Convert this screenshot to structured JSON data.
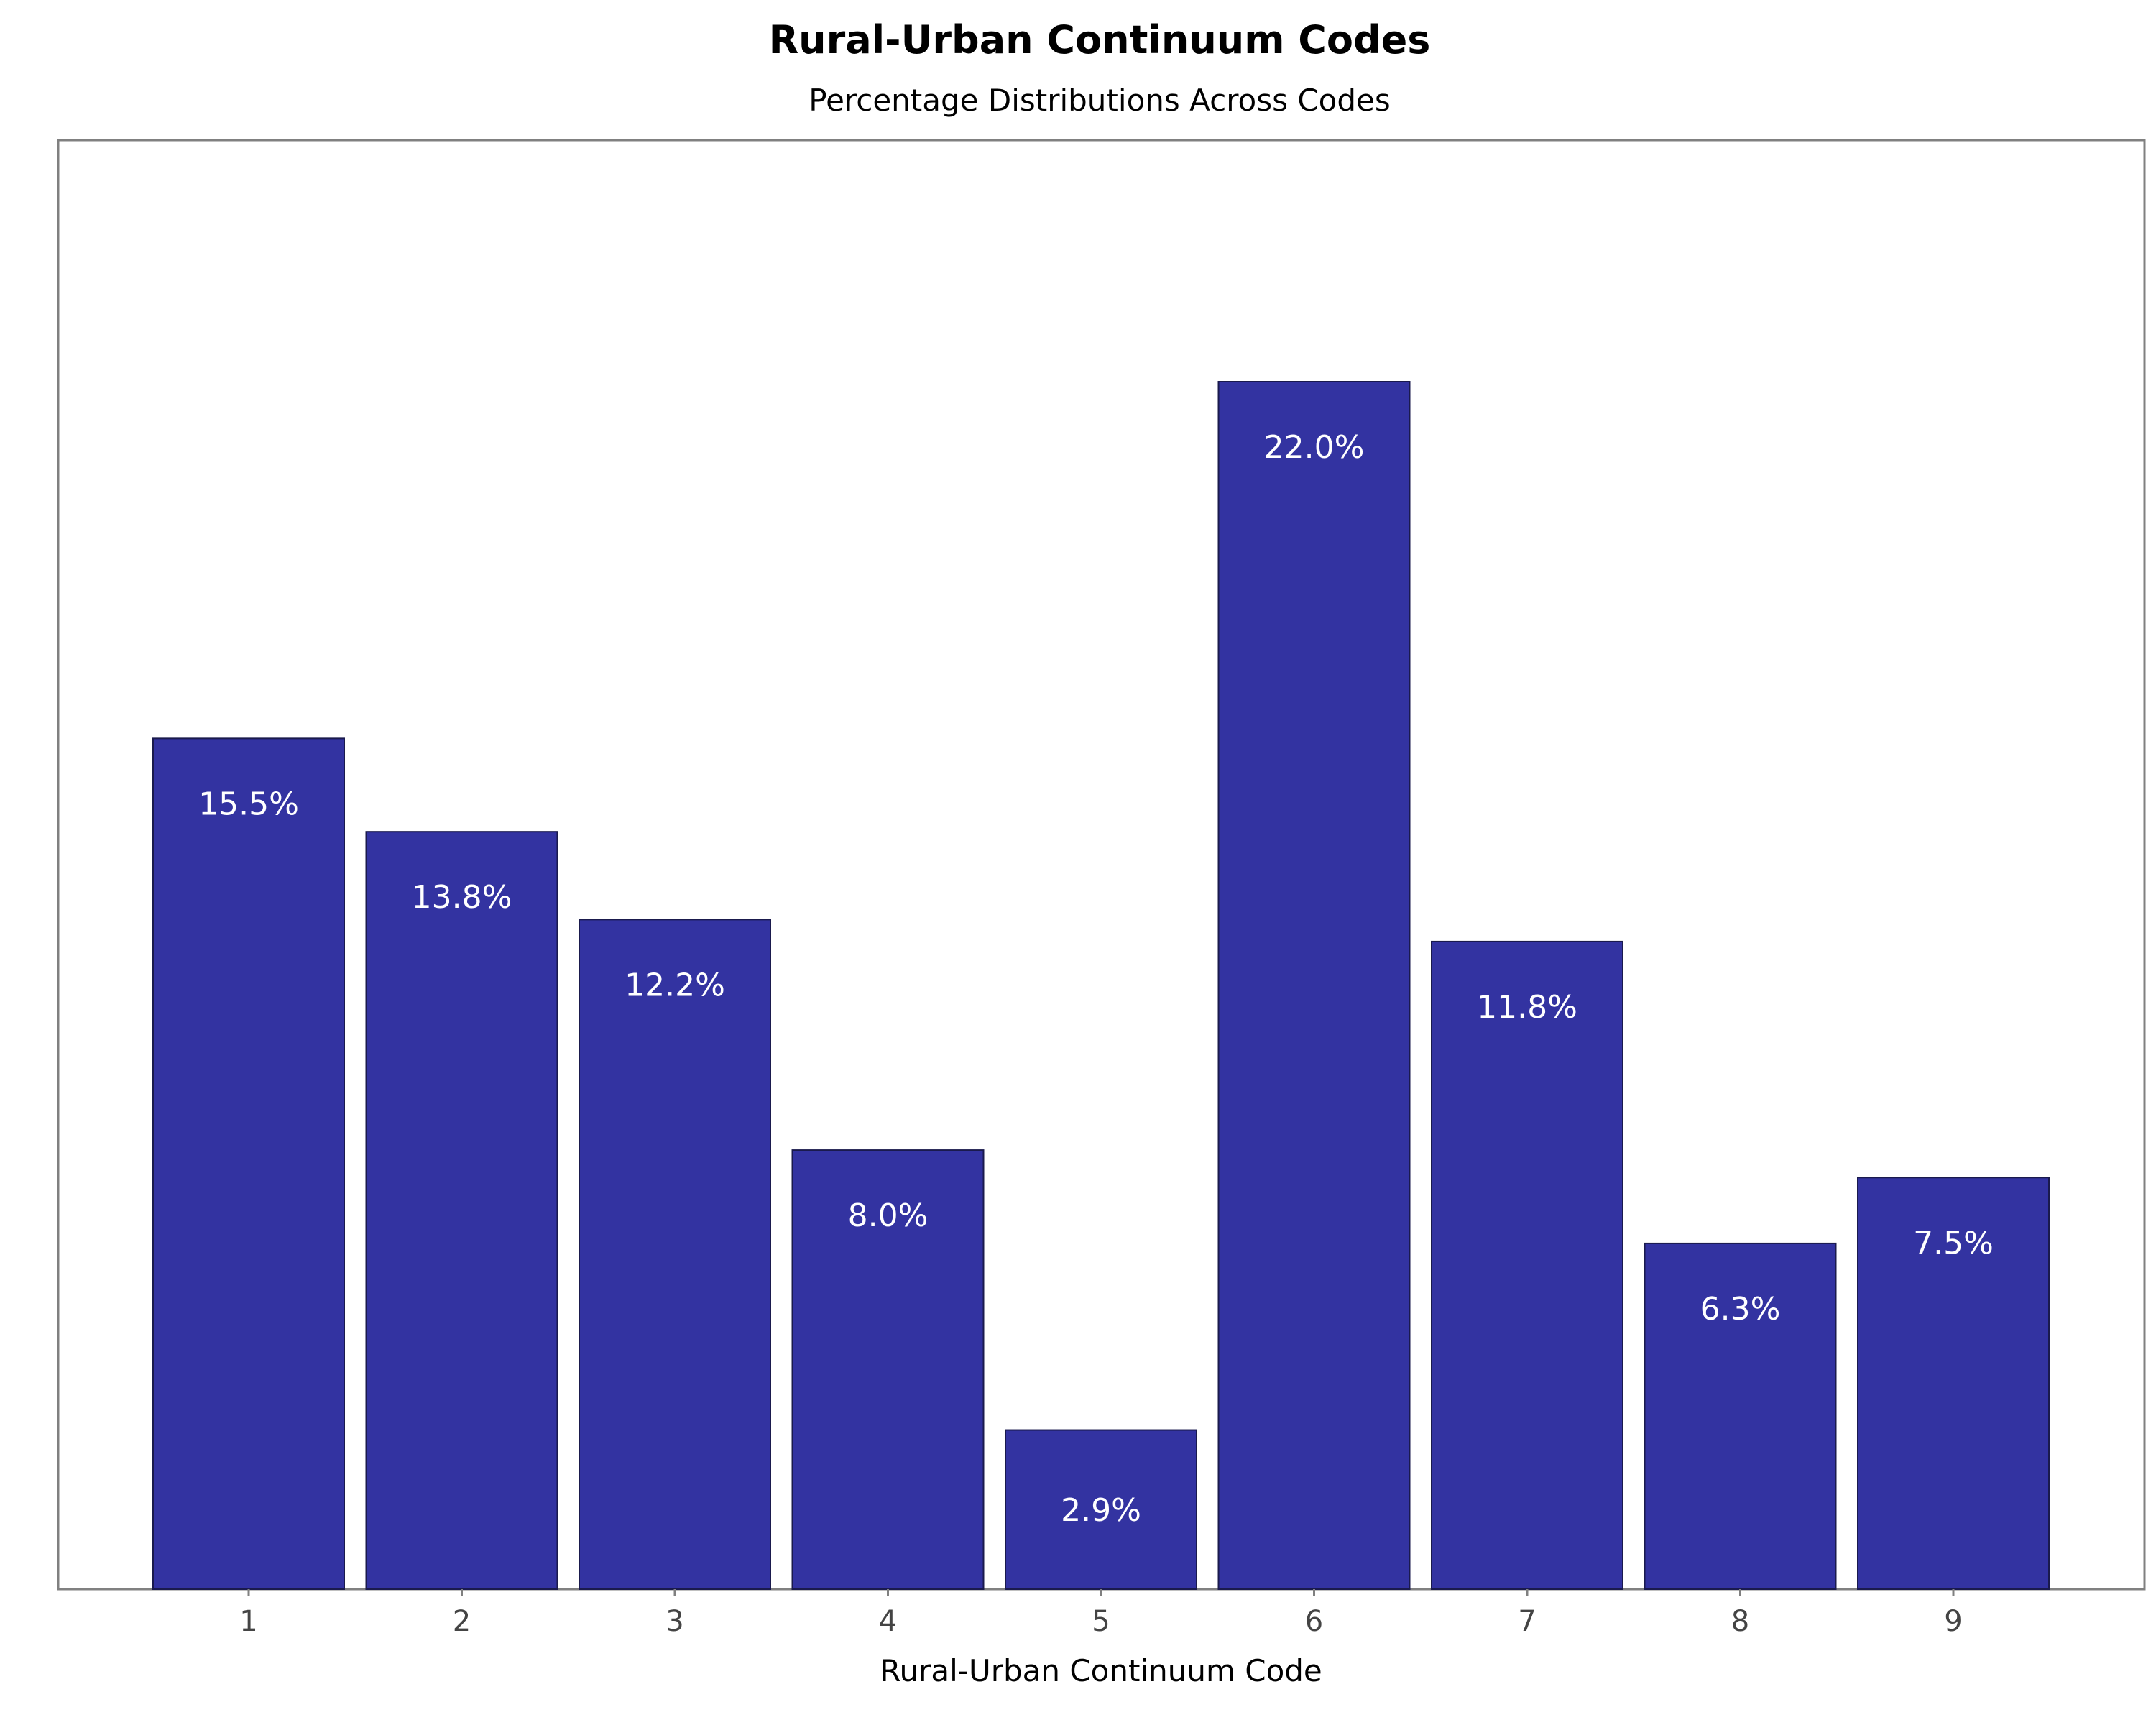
{
  "chart_data": {
    "type": "bar",
    "title": "Rural-Urban Continuum Codes",
    "subtitle": "Percentage Distributions Across Codes",
    "xlabel": "Rural-Urban Continuum Code",
    "ylabel": "",
    "categories": [
      "1",
      "2",
      "3",
      "4",
      "5",
      "6",
      "7",
      "8",
      "9"
    ],
    "values": [
      15.5,
      13.8,
      12.2,
      8.0,
      2.9,
      22.0,
      11.8,
      6.3,
      7.5
    ],
    "data_labels": [
      "15.5%",
      "13.8%",
      "12.2%",
      "8.0%",
      "2.9%",
      "22.0%",
      "11.8%",
      "6.3%",
      "7.5%"
    ],
    "ylim": [
      0,
      26.4
    ],
    "grid": false,
    "legend": "none",
    "bar_color": "#3333a1",
    "bar_edge_color": "#1a1a4d",
    "frame_color": "#808080"
  }
}
